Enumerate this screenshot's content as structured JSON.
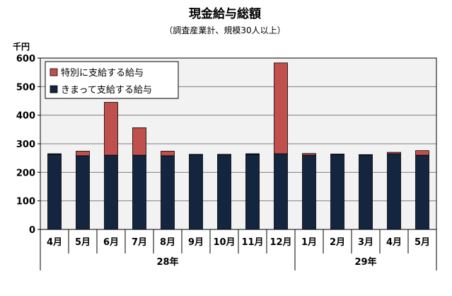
{
  "chart_data": {
    "type": "bar",
    "stacked": true,
    "title": "現金給与総額",
    "subtitle": "（調査産業計、規模30人以上）",
    "unit_label": "千円",
    "ylim": [
      0,
      600
    ],
    "yticks": [
      0,
      100,
      200,
      300,
      400,
      500,
      600
    ],
    "grid": true,
    "legend_position": "top-left",
    "categories": [
      "4月",
      "5月",
      "6月",
      "7月",
      "8月",
      "9月",
      "10月",
      "11月",
      "12月",
      "1月",
      "2月",
      "3月",
      "4月",
      "5月"
    ],
    "groups": [
      {
        "label": "28年",
        "start": 0,
        "end": 8
      },
      {
        "label": "29年",
        "start": 9,
        "end": 13
      }
    ],
    "series": [
      {
        "name": "きまって支給する給与",
        "color": "#14253f",
        "values": [
          263,
          258,
          260,
          260,
          258,
          262,
          262,
          263,
          265,
          260,
          263,
          261,
          265,
          260
        ]
      },
      {
        "name": "特別に支給する給与",
        "color": "#c0504d",
        "values": [
          2,
          16,
          185,
          96,
          16,
          1,
          1,
          2,
          318,
          6,
          1,
          1,
          5,
          16
        ]
      }
    ]
  }
}
